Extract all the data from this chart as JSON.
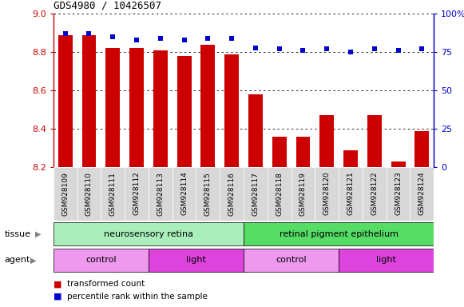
{
  "title": "GDS4980 / 10426507",
  "samples": [
    "GSM928109",
    "GSM928110",
    "GSM928111",
    "GSM928112",
    "GSM928113",
    "GSM928114",
    "GSM928115",
    "GSM928116",
    "GSM928117",
    "GSM928118",
    "GSM928119",
    "GSM928120",
    "GSM928121",
    "GSM928122",
    "GSM928123",
    "GSM928124"
  ],
  "bar_values": [
    8.89,
    8.89,
    8.82,
    8.82,
    8.81,
    8.78,
    8.84,
    8.79,
    8.58,
    8.36,
    8.36,
    8.47,
    8.29,
    8.47,
    8.23,
    8.39
  ],
  "percentile_values": [
    87,
    87,
    85,
    83,
    84,
    83,
    84,
    84,
    78,
    77,
    76,
    77,
    75,
    77,
    76,
    77
  ],
  "bar_color": "#cc0000",
  "dot_color": "#0000cc",
  "ylim_left": [
    8.2,
    9.0
  ],
  "ylim_right": [
    0,
    100
  ],
  "yticks_left": [
    8.2,
    8.4,
    8.6,
    8.8,
    9.0
  ],
  "yticks_right": [
    0,
    25,
    50,
    75,
    100
  ],
  "ytick_labels_right": [
    "0",
    "25",
    "50",
    "75",
    "100%"
  ],
  "bar_bottom": 8.2,
  "tissue_labels": [
    {
      "text": "neurosensory retina",
      "start": 0,
      "end": 7,
      "color": "#aaeebb"
    },
    {
      "text": "retinal pigment epithelium",
      "start": 8,
      "end": 15,
      "color": "#55dd66"
    }
  ],
  "agent_labels": [
    {
      "text": "control",
      "start": 0,
      "end": 3,
      "color": "#ee99ee"
    },
    {
      "text": "light",
      "start": 4,
      "end": 7,
      "color": "#dd44dd"
    },
    {
      "text": "control",
      "start": 8,
      "end": 11,
      "color": "#ee99ee"
    },
    {
      "text": "light",
      "start": 12,
      "end": 15,
      "color": "#dd44dd"
    }
  ],
  "xtick_bg": "#d8d8d8",
  "legend_items": [
    {
      "label": "transformed count",
      "color": "#cc0000"
    },
    {
      "label": "percentile rank within the sample",
      "color": "#0000cc"
    }
  ]
}
